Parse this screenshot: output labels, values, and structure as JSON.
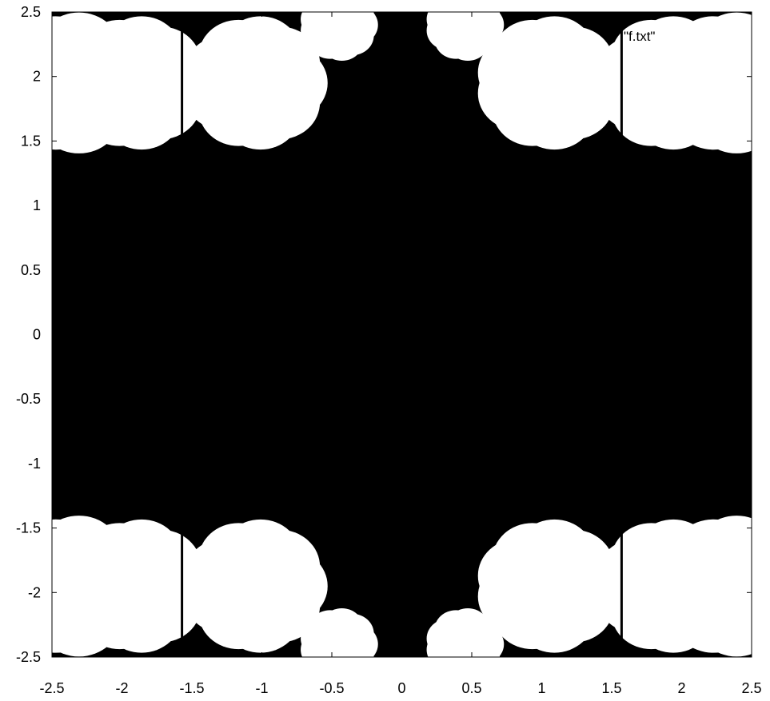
{
  "chart_data": {
    "type": "scatter",
    "xlim": [
      -2.5,
      2.5
    ],
    "ylim": [
      -2.5,
      2.5
    ],
    "x_ticks": [
      -2.5,
      -2,
      -1.5,
      -1,
      -0.5,
      0,
      0.5,
      1,
      1.5,
      2,
      2.5
    ],
    "y_ticks": [
      -2.5,
      -2,
      -1.5,
      -1,
      -0.5,
      0,
      0.5,
      1,
      1.5,
      2,
      2.5
    ],
    "x_tick_labels": [
      "-2.5",
      "-2",
      "-1.5",
      "-1",
      "-0.5",
      "0",
      "0.5",
      "1",
      "1.5",
      "2",
      "2.5"
    ],
    "y_tick_labels": [
      "-2.5",
      "-2",
      "-1.5",
      "-1",
      "-0.5",
      "0",
      "0.5",
      "1",
      "1.5",
      "2",
      "2.5"
    ],
    "legend": {
      "label": "\"f.txt\"",
      "placement": "top-right"
    },
    "grid": false,
    "background_color": "#ffffff",
    "fill_color": "#000000",
    "series": [
      {
        "name": "\"f.txt\"",
        "fractal_region": {
          "description_source": "black dense point set",
          "x_range": [
            -2.5,
            2.5
          ],
          "y_range": [
            -2.5,
            2.5
          ]
        },
        "white_lobes": [
          {
            "center": [
              -2.35,
              1.95
            ],
            "radius": 0.55
          },
          {
            "center": [
              -1.9,
              1.95
            ],
            "radius": 0.52
          },
          {
            "center": [
              -1.05,
              1.95
            ],
            "radius": 0.52
          },
          {
            "center": [
              -0.45,
              2.4
            ],
            "radius": 0.28
          },
          {
            "center": [
              0.45,
              2.4
            ],
            "radius": 0.28
          },
          {
            "center": [
              1.05,
              1.95
            ],
            "radius": 0.52
          },
          {
            "center": [
              1.9,
              1.95
            ],
            "radius": 0.52
          },
          {
            "center": [
              2.35,
              1.95
            ],
            "radius": 0.55
          },
          {
            "center": [
              -2.35,
              -1.95
            ],
            "radius": 0.55
          },
          {
            "center": [
              -1.9,
              -1.95
            ],
            "radius": 0.52
          },
          {
            "center": [
              -1.05,
              -1.95
            ],
            "radius": 0.52
          },
          {
            "center": [
              -0.45,
              -2.4
            ],
            "radius": 0.28
          },
          {
            "center": [
              0.45,
              -2.4
            ],
            "radius": 0.28
          },
          {
            "center": [
              1.05,
              -1.95
            ],
            "radius": 0.52
          },
          {
            "center": [
              1.9,
              -1.95
            ],
            "radius": 0.52
          },
          {
            "center": [
              2.35,
              -1.95
            ],
            "radius": 0.55
          }
        ],
        "spikes_x": [
          -1.5708,
          1.5708
        ]
      }
    ]
  }
}
